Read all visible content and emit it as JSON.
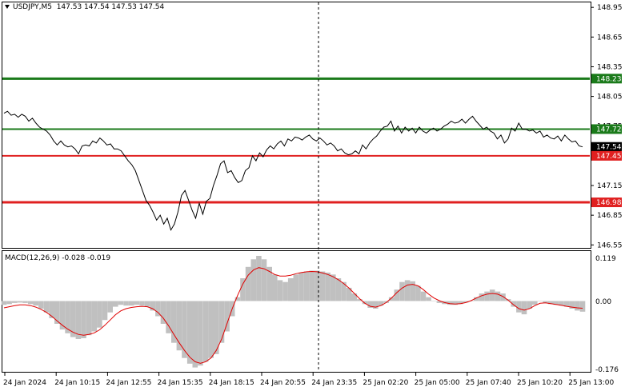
{
  "header": {
    "symbol": "USDJPY,M5",
    "quote": "147.53 147.54 147.53 147.54"
  },
  "macd": {
    "label": "MACD(12,26,9) -0.028 -0.019",
    "max_label": "0.119",
    "zero_label": "0.00",
    "min_label": "-0.176"
  },
  "price_axis": {
    "ticks": [
      "148.95",
      "148.65",
      "148.35",
      "148.05",
      "147.75",
      "147.45",
      "147.15",
      "146.85",
      "146.55"
    ],
    "range": [
      146.52,
      149.0
    ]
  },
  "levels": [
    {
      "label": "148.23",
      "value": 148.23,
      "color": "#1a7a1a"
    },
    {
      "label": "147.72",
      "value": 147.72,
      "color": "#1a7a1a"
    },
    {
      "label": "147.54",
      "value": 147.54,
      "color": "#000000"
    },
    {
      "label": "147.45",
      "value": 147.45,
      "color": "#e02020"
    },
    {
      "label": "146.98",
      "value": 146.98,
      "color": "#e02020"
    }
  ],
  "time_axis": [
    "24 Jan 2024",
    "24 Jan 10:15",
    "24 Jan 12:55",
    "24 Jan 15:35",
    "24 Jan 18:15",
    "24 Jan 20:55",
    "24 Jan 23:35",
    "25 Jan 02:20",
    "25 Jan 05:00",
    "25 Jan 07:40",
    "25 Jan 10:20",
    "25 Jan 13:00"
  ],
  "chart_data": {
    "type": "line",
    "title": "USDJPY,M5",
    "price": [
      147.88,
      147.9,
      147.86,
      147.87,
      147.84,
      147.87,
      147.85,
      147.8,
      147.83,
      147.78,
      147.74,
      147.72,
      147.7,
      147.66,
      147.6,
      147.56,
      147.6,
      147.56,
      147.54,
      147.55,
      147.52,
      147.47,
      147.55,
      147.56,
      147.55,
      147.6,
      147.58,
      147.63,
      147.6,
      147.56,
      147.57,
      147.52,
      147.52,
      147.5,
      147.45,
      147.4,
      147.36,
      147.3,
      147.2,
      147.1,
      147.0,
      146.95,
      146.88,
      146.8,
      146.85,
      146.76,
      146.82,
      146.7,
      146.76,
      146.88,
      147.05,
      147.1,
      147.0,
      146.9,
      146.82,
      146.97,
      146.86,
      146.99,
      147.02,
      147.15,
      147.25,
      147.37,
      147.4,
      147.28,
      147.3,
      147.23,
      147.18,
      147.2,
      147.3,
      147.33,
      147.45,
      147.4,
      147.48,
      147.44,
      147.51,
      147.55,
      147.52,
      147.57,
      147.6,
      147.55,
      147.62,
      147.6,
      147.64,
      147.63,
      147.61,
      147.64,
      147.66,
      147.62,
      147.6,
      147.63,
      147.6,
      147.56,
      147.58,
      147.55,
      147.5,
      147.52,
      147.48,
      147.46,
      147.47,
      147.5,
      147.47,
      147.56,
      147.52,
      147.58,
      147.62,
      147.65,
      147.7,
      147.74,
      147.75,
      147.8,
      147.7,
      147.75,
      147.68,
      147.74,
      147.7,
      147.73,
      147.68,
      147.74,
      147.7,
      147.68,
      147.71,
      147.73,
      147.7,
      147.72,
      147.75,
      147.77,
      147.8,
      147.78,
      147.79,
      147.82,
      147.78,
      147.82,
      147.85,
      147.8,
      147.76,
      147.72,
      147.74,
      147.7,
      147.68,
      147.62,
      147.66,
      147.58,
      147.62,
      147.73,
      147.7,
      147.78,
      147.72,
      147.72,
      147.7,
      147.71,
      147.68,
      147.7,
      147.64,
      147.66,
      147.63,
      147.62,
      147.65,
      147.6,
      147.66,
      147.62,
      147.59,
      147.6,
      147.55,
      147.54
    ],
    "macd_histogram": [
      -0.01,
      -0.008,
      -0.005,
      -0.004,
      -0.005,
      -0.008,
      -0.012,
      -0.02,
      -0.03,
      -0.045,
      -0.06,
      -0.075,
      -0.085,
      -0.095,
      -0.1,
      -0.098,
      -0.09,
      -0.08,
      -0.07,
      -0.05,
      -0.03,
      -0.015,
      -0.01,
      -0.012,
      -0.012,
      -0.01,
      -0.012,
      -0.015,
      -0.025,
      -0.04,
      -0.06,
      -0.085,
      -0.11,
      -0.13,
      -0.15,
      -0.165,
      -0.175,
      -0.17,
      -0.16,
      -0.15,
      -0.14,
      -0.11,
      -0.08,
      -0.04,
      0.01,
      0.06,
      0.09,
      0.11,
      0.119,
      0.11,
      0.09,
      0.07,
      0.055,
      0.05,
      0.06,
      0.07,
      0.075,
      0.078,
      0.08,
      0.08,
      0.078,
      0.075,
      0.07,
      0.06,
      0.05,
      0.035,
      0.02,
      0.005,
      -0.008,
      -0.018,
      -0.02,
      -0.012,
      -0.005,
      0.01,
      0.03,
      0.05,
      0.055,
      0.052,
      0.04,
      0.025,
      0.01,
      0.0,
      -0.005,
      -0.008,
      -0.01,
      -0.01,
      -0.008,
      -0.004,
      0.0,
      0.01,
      0.02,
      0.025,
      0.03,
      0.025,
      0.02,
      0.005,
      -0.015,
      -0.03,
      -0.035,
      -0.02,
      -0.01,
      0.0,
      -0.005,
      -0.008,
      -0.01,
      -0.012,
      -0.015,
      -0.02,
      -0.025,
      -0.028
    ],
    "macd_signal": [
      -0.018,
      -0.015,
      -0.012,
      -0.01,
      -0.01,
      -0.012,
      -0.016,
      -0.022,
      -0.03,
      -0.04,
      -0.052,
      -0.064,
      -0.074,
      -0.082,
      -0.088,
      -0.09,
      -0.088,
      -0.084,
      -0.076,
      -0.064,
      -0.05,
      -0.036,
      -0.026,
      -0.02,
      -0.017,
      -0.015,
      -0.014,
      -0.015,
      -0.02,
      -0.03,
      -0.045,
      -0.065,
      -0.088,
      -0.11,
      -0.13,
      -0.148,
      -0.16,
      -0.164,
      -0.16,
      -0.15,
      -0.13,
      -0.1,
      -0.06,
      -0.02,
      0.015,
      0.045,
      0.068,
      0.082,
      0.088,
      0.085,
      0.078,
      0.07,
      0.066,
      0.066,
      0.068,
      0.072,
      0.075,
      0.077,
      0.078,
      0.077,
      0.074,
      0.07,
      0.064,
      0.056,
      0.046,
      0.034,
      0.02,
      0.006,
      -0.006,
      -0.014,
      -0.016,
      -0.012,
      -0.004,
      0.008,
      0.022,
      0.034,
      0.042,
      0.044,
      0.04,
      0.03,
      0.018,
      0.008,
      0.001,
      -0.004,
      -0.007,
      -0.008,
      -0.007,
      -0.004,
      0.001,
      0.008,
      0.014,
      0.018,
      0.02,
      0.018,
      0.012,
      0.002,
      -0.01,
      -0.02,
      -0.024,
      -0.02,
      -0.012,
      -0.006,
      -0.005,
      -0.007,
      -0.009,
      -0.011,
      -0.014,
      -0.016,
      -0.018,
      -0.019
    ],
    "macd_range": [
      -0.176,
      0.119
    ]
  }
}
